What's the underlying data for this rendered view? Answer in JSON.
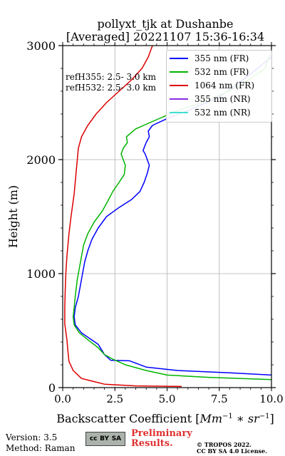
{
  "header": {
    "title_line1": "pollyxt_tjk at Dushanbe",
    "title_line2": "[Averaged] 20221107 15:36-16:34"
  },
  "annotation": {
    "ref355": "refH355:  2.5- 3.0 km",
    "ref532": "refH532:  2.5- 3.0 km"
  },
  "footer": {
    "version": "Version: 3.5",
    "method": "Method: Raman",
    "license_badge": [
      "cc",
      "BY",
      "SA"
    ],
    "preliminary_line1": "Preliminary",
    "preliminary_line2": "Results.",
    "copyright_line1": "© TROPOS 2022.",
    "copyright_line2": "CC BY SA 4.0 License."
  },
  "chart_data": {
    "type": "line",
    "title": "pollyxt_tjk at Dushanbe [Averaged] 20221107 15:36-16:34",
    "xlabel": "Backscatter Coefficient [Mm⁻¹ * sr⁻¹]",
    "ylabel": "Height (m)",
    "xlim": [
      0,
      10
    ],
    "ylim": [
      0,
      3000
    ],
    "xticks": [
      "0.0",
      "2.5",
      "5.0",
      "7.5",
      "10.0"
    ],
    "yticks": [
      "0",
      "1000",
      "2000",
      "3000"
    ],
    "grid": true,
    "legend_position": "top-right",
    "series": [
      {
        "name": "355 nm (FR)",
        "color": "#0000ff",
        "points": [
          [
            10,
            110
          ],
          [
            8,
            130
          ],
          [
            5.5,
            150
          ],
          [
            4,
            180
          ],
          [
            3.2,
            235
          ],
          [
            2.3,
            240
          ],
          [
            2.0,
            290
          ],
          [
            1.7,
            380
          ],
          [
            1.3,
            430
          ],
          [
            0.9,
            480
          ],
          [
            0.6,
            550
          ],
          [
            0.55,
            620
          ],
          [
            0.6,
            700
          ],
          [
            0.75,
            800
          ],
          [
            0.9,
            950
          ],
          [
            1.05,
            1100
          ],
          [
            1.2,
            1200
          ],
          [
            1.4,
            1300
          ],
          [
            1.7,
            1400
          ],
          [
            2.1,
            1500
          ],
          [
            2.7,
            1580
          ],
          [
            3.3,
            1650
          ],
          [
            3.7,
            1720
          ],
          [
            3.9,
            1800
          ],
          [
            4.05,
            1880
          ],
          [
            4.15,
            1950
          ],
          [
            3.95,
            2050
          ],
          [
            3.85,
            2080
          ],
          [
            4.0,
            2150
          ],
          [
            4.15,
            2200
          ],
          [
            4.1,
            2250
          ],
          [
            4.3,
            2300
          ],
          [
            5,
            2360
          ],
          [
            6,
            2430
          ],
          [
            7.5,
            2550
          ],
          [
            9,
            2750
          ],
          [
            10,
            2900
          ]
        ]
      },
      {
        "name": "532 nm (FR)",
        "color": "#00b400",
        "points": [
          [
            10,
            70
          ],
          [
            7,
            90
          ],
          [
            5,
            110
          ],
          [
            4,
            150
          ],
          [
            3,
            200
          ],
          [
            2.4,
            250
          ],
          [
            2.0,
            290
          ],
          [
            1.7,
            350
          ],
          [
            1.2,
            420
          ],
          [
            0.8,
            480
          ],
          [
            0.55,
            550
          ],
          [
            0.5,
            620
          ],
          [
            0.55,
            700
          ],
          [
            0.6,
            800
          ],
          [
            0.7,
            950
          ],
          [
            0.85,
            1100
          ],
          [
            1.0,
            1250
          ],
          [
            1.2,
            1350
          ],
          [
            1.5,
            1450
          ],
          [
            1.9,
            1550
          ],
          [
            2.2,
            1650
          ],
          [
            2.4,
            1720
          ],
          [
            2.7,
            1800
          ],
          [
            2.95,
            1870
          ],
          [
            3.0,
            1950
          ],
          [
            2.8,
            2050
          ],
          [
            2.9,
            2100
          ],
          [
            3.1,
            2150
          ],
          [
            3.05,
            2200
          ],
          [
            3.5,
            2270
          ],
          [
            4.5,
            2350
          ],
          [
            5.5,
            2430
          ],
          [
            7,
            2520
          ],
          [
            8.5,
            2650
          ],
          [
            9.7,
            2800
          ],
          [
            9.9,
            2920
          ]
        ]
      },
      {
        "name": "1064 nm (FR)",
        "color": "#dd0000",
        "points": [
          [
            5.7,
            10
          ],
          [
            3.5,
            15
          ],
          [
            2.0,
            30
          ],
          [
            0.9,
            80
          ],
          [
            0.5,
            150
          ],
          [
            0.3,
            230
          ],
          [
            0.25,
            320
          ],
          [
            0.2,
            420
          ],
          [
            0.1,
            560
          ],
          [
            0.1,
            700
          ],
          [
            0.12,
            850
          ],
          [
            0.15,
            1000
          ],
          [
            0.2,
            1150
          ],
          [
            0.3,
            1350
          ],
          [
            0.4,
            1500
          ],
          [
            0.55,
            1700
          ],
          [
            0.65,
            1900
          ],
          [
            0.75,
            2100
          ],
          [
            0.9,
            2200
          ],
          [
            1.2,
            2300
          ],
          [
            1.6,
            2400
          ],
          [
            2.1,
            2500
          ],
          [
            2.7,
            2600
          ],
          [
            3.3,
            2700
          ],
          [
            3.8,
            2800
          ],
          [
            4.1,
            2900
          ],
          [
            4.3,
            3000
          ]
        ]
      },
      {
        "name": "355 nm (NR)",
        "color": "#8a2be2",
        "points": []
      },
      {
        "name": "532 nm (NR)",
        "color": "#40e0d0",
        "points": []
      }
    ]
  }
}
